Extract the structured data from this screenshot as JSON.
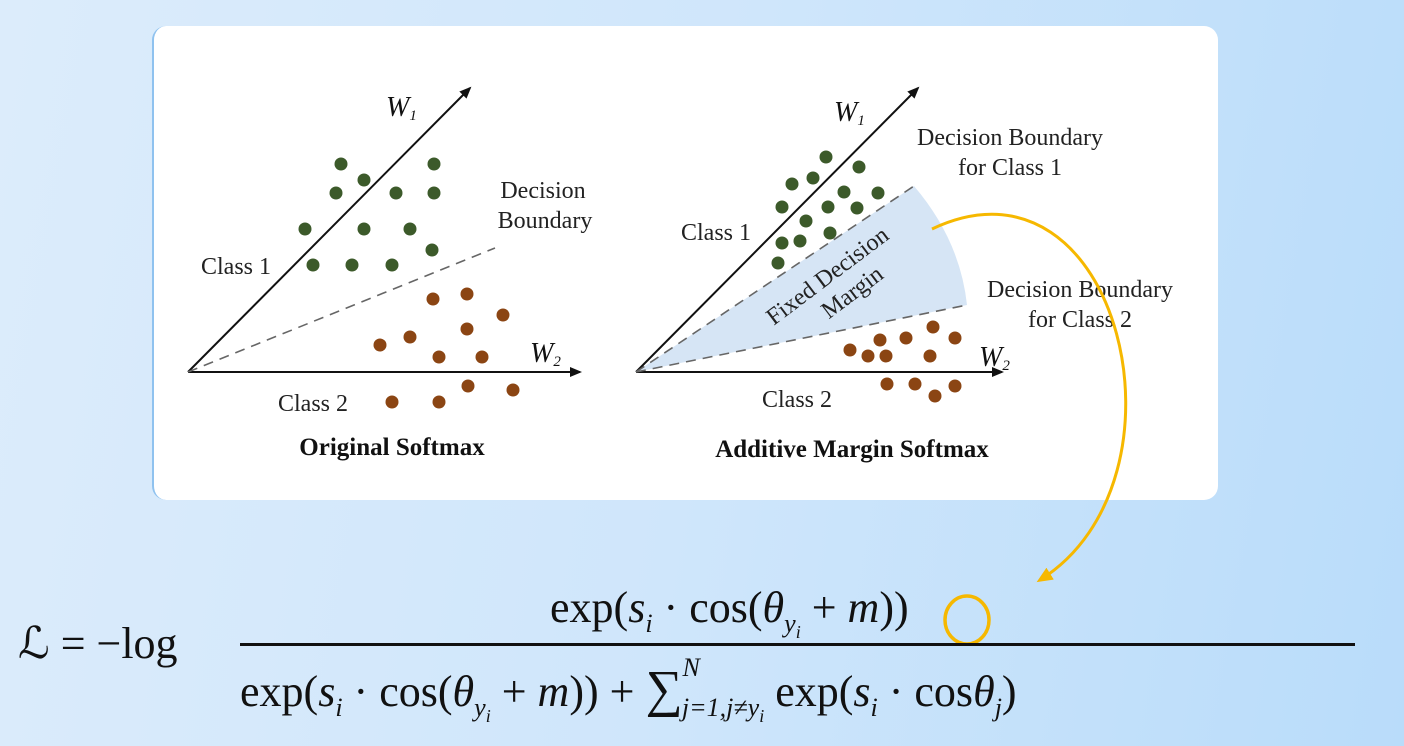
{
  "left_panel": {
    "axis_w1": "W",
    "axis_w1_sub": "1",
    "axis_w2": "W",
    "axis_w2_sub": "2",
    "boundary_line1": "Decision",
    "boundary_line2": "Boundary",
    "class1": "Class 1",
    "class2": "Class 2",
    "caption": "Original Softmax"
  },
  "right_panel": {
    "axis_w1": "W",
    "axis_w1_sub": "1",
    "axis_w2": "W",
    "axis_w2_sub": "2",
    "boundary1_line1": "Decision Boundary",
    "boundary1_line2": "for Class 1",
    "boundary2_line1": "Decision Boundary",
    "boundary2_line2": "for Class 2",
    "margin_line1": "Fixed Decision",
    "margin_line2": "Margin",
    "class1": "Class 1",
    "class2": "Class 2",
    "caption": "Additive Margin Softmax"
  },
  "colors": {
    "class1": "#3c5a2a",
    "class2": "#8b4513",
    "margin_fill": "#d6e5f5",
    "highlight": "#f6b800"
  },
  "formula": {
    "lhs": "ℒ = −log",
    "num_exp": "exp(",
    "s": "s",
    "i": "i",
    "dot_cos": " · cos(",
    "theta": "θ",
    "y": "y",
    "plus": " + ",
    "m": "m",
    "close2": "))",
    "plus_sum": " + ",
    "sigma": "∑",
    "sum_upper": "N",
    "sum_lower": "j=1,j≠",
    "exp2": " exp(",
    "dot_cos2": " · cos",
    "j": "j",
    "close1": ")"
  }
}
